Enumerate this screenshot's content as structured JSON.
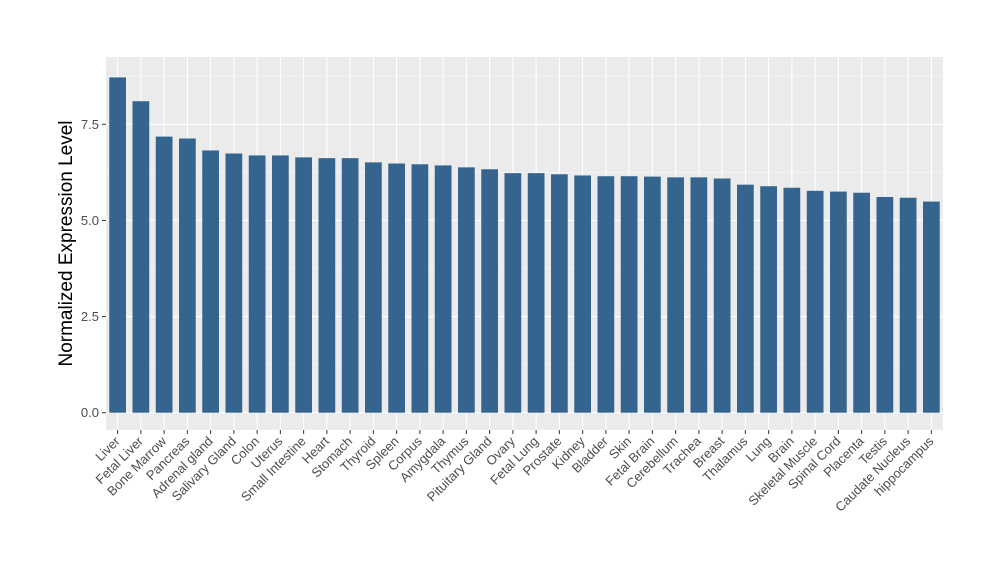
{
  "chart_data": {
    "type": "bar",
    "title": "",
    "xlabel": "",
    "ylabel": "Normalized Expression Level",
    "ylim": [
      -0.45,
      9.25
    ],
    "yticks": [
      0.0,
      2.5,
      5.0,
      7.5
    ],
    "ytick_labels": [
      "0.0",
      "2.5",
      "5.0",
      "7.5"
    ],
    "grid": true,
    "legend": "none",
    "bar_color": "#35658F",
    "panel_color": "#EBEBEB",
    "categories": [
      "Liver",
      "Fetal Liver",
      "Bone Marrow",
      "Pancreas",
      "Adrenal gland",
      "Salivary Gland",
      "Colon",
      "Uterus",
      "Small Intestine",
      "Heart",
      "Stomach",
      "Thyroid",
      "Spleen",
      "Corpus",
      "Amygdala",
      "Thymus",
      "Pituitary Gland",
      "Ovary",
      "Fetal Lung",
      "Prostate",
      "Kidney",
      "Bladder",
      "Skin",
      "Fetal Brain",
      "Cerebellum",
      "Trachea",
      "Breast",
      "Thalamus",
      "Lung",
      "Brain",
      "Skeletal Muscle",
      "Spinal Cord",
      "Placenta",
      "Testis",
      "Caudate Nucleus",
      "hippocampus"
    ],
    "values": [
      8.72,
      8.1,
      7.18,
      7.13,
      6.82,
      6.74,
      6.69,
      6.69,
      6.64,
      6.62,
      6.62,
      6.51,
      6.48,
      6.46,
      6.43,
      6.38,
      6.33,
      6.23,
      6.23,
      6.2,
      6.17,
      6.15,
      6.15,
      6.14,
      6.12,
      6.12,
      6.09,
      5.93,
      5.89,
      5.85,
      5.77,
      5.75,
      5.72,
      5.61,
      5.59,
      5.49
    ]
  }
}
